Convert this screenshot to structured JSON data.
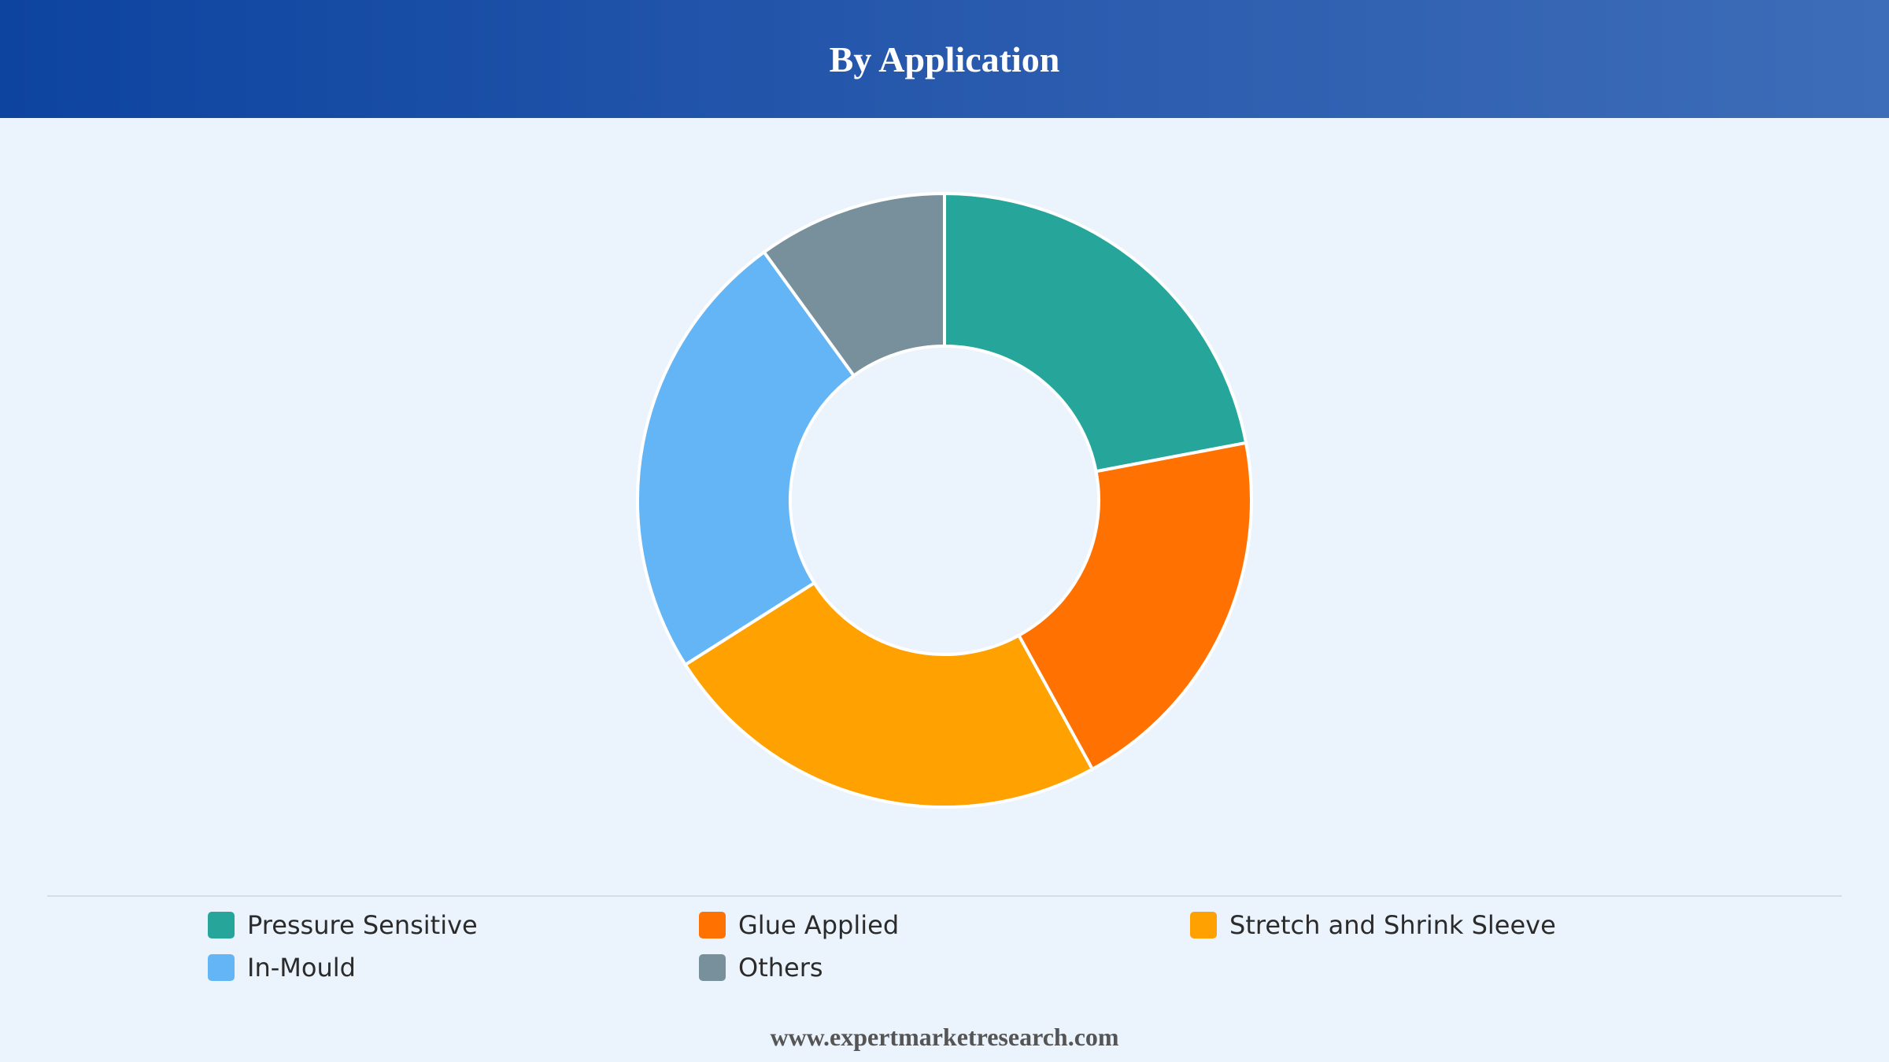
{
  "header": {
    "title": "By Application"
  },
  "chart_data": {
    "type": "pie",
    "title": "By Application",
    "donut": true,
    "categories": [
      "Pressure Sensitive",
      "Glue Applied",
      "Stretch and Shrink Sleeve",
      "In-Mould",
      "Others"
    ],
    "values": [
      22,
      20,
      24,
      24,
      10
    ],
    "colors": [
      "#26a69a",
      "#ff7100",
      "#ffa100",
      "#64b5f6",
      "#78909c"
    ],
    "legend_position": "bottom"
  },
  "footer": {
    "text": "www.expertmarketresearch.com"
  }
}
